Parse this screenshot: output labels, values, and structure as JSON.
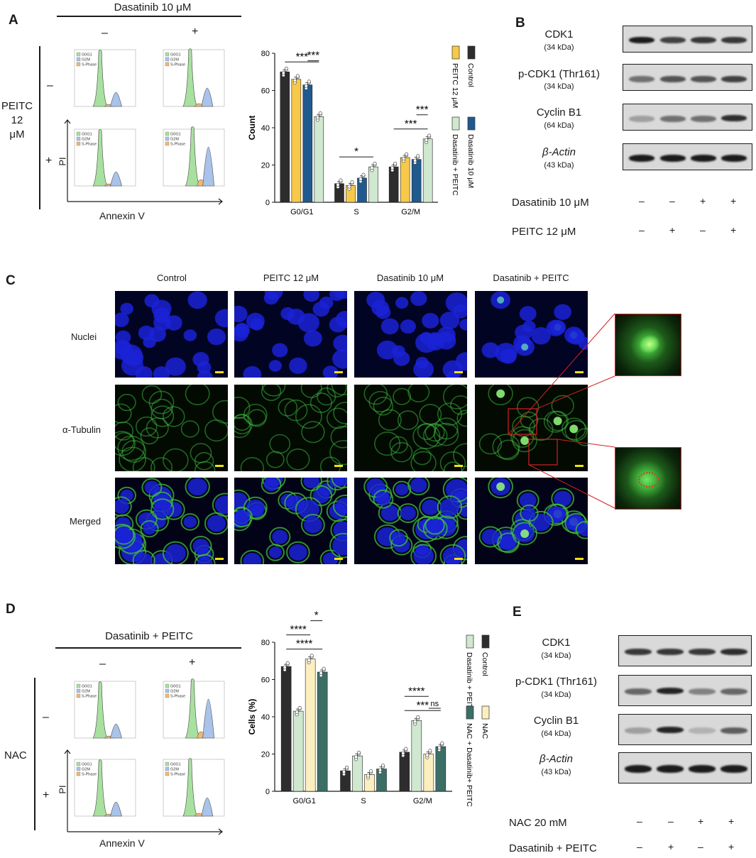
{
  "panels": {
    "A": {
      "label": "A",
      "header_text": "Dasatinib 10 μM",
      "col_minus": "–",
      "col_plus": "+",
      "row_label": "PEITC\n12\nμM",
      "row_label_lines": [
        "PEITC",
        "12",
        "μM"
      ],
      "row_minus": "–",
      "row_plus": "+",
      "y_axis": "PI",
      "x_axis": "Annexin V",
      "hist_legend": [
        "G0G1",
        "G2M",
        "S-Phase"
      ]
    },
    "B": {
      "label": "B",
      "proteins": [
        {
          "name": "CDK1",
          "kda": "(34 kDa)"
        },
        {
          "name": "p-CDK1 (Thr161)",
          "kda": "(34 kDa)"
        },
        {
          "name": "Cyclin B1",
          "kda": "(64 kDa)"
        },
        {
          "name": "β-Actin",
          "kda": "(43 kDa)"
        }
      ],
      "conditions": [
        {
          "label": "Dasatinib 10 μM",
          "signs": [
            "–",
            "–",
            "+",
            "+"
          ]
        },
        {
          "label": "PEITC 12 μM",
          "signs": [
            "–",
            "+",
            "–",
            "+"
          ]
        }
      ]
    },
    "C": {
      "label": "C",
      "columns": [
        "Control",
        "PEITC 12 μM",
        "Dasatinib 10 μM",
        "Dasatinib + PEITC"
      ],
      "rows": [
        "Nuclei",
        "α-Tubulin",
        "Merged"
      ]
    },
    "D": {
      "label": "D",
      "header_text": "Dasatinib + PEITC",
      "col_minus": "–",
      "col_plus": "+",
      "row_label": "NAC",
      "row_minus": "–",
      "row_plus": "+",
      "y_axis": "PI",
      "x_axis": "Annexin V",
      "hist_legend": [
        "G0G1",
        "G2M",
        "S-Phase"
      ]
    },
    "E": {
      "label": "E",
      "proteins": [
        {
          "name": "CDK1",
          "kda": "(34 kDa)"
        },
        {
          "name": "p-CDK1 (Thr161)",
          "kda": "(34 kDa)"
        },
        {
          "name": "Cyclin B1",
          "kda": "(64 kDa)"
        },
        {
          "name": "β-Actin",
          "kda": "(43 kDa)"
        }
      ],
      "conditions": [
        {
          "label": "NAC 20 mM",
          "signs": [
            "–",
            "–",
            "+",
            "+"
          ]
        },
        {
          "label": "Dasatinib + PEITC",
          "signs": [
            "–",
            "+",
            "–",
            "+"
          ]
        }
      ]
    }
  },
  "chart_data": [
    {
      "type": "bar",
      "panel": "A",
      "title": "",
      "xlabel": "",
      "ylabel": "Count",
      "ylim": [
        0,
        80
      ],
      "yticks": [
        0,
        20,
        40,
        60,
        80
      ],
      "categories": [
        "G0/G1",
        "S",
        "G2/M"
      ],
      "series": [
        {
          "name": "Control",
          "color": "#2d2d2d",
          "values": [
            70,
            10,
            19
          ]
        },
        {
          "name": "PEITC 12 μM",
          "color": "#f6c94a",
          "values": [
            66,
            9,
            24
          ]
        },
        {
          "name": "Dasatinib 10 μM",
          "color": "#1f5a8e",
          "values": [
            63,
            13,
            23
          ]
        },
        {
          "name": "Dasatinib + PEITC",
          "color": "#cfe8cf",
          "values": [
            46,
            19,
            34
          ]
        }
      ],
      "significance": [
        {
          "text": "***",
          "category": "G0/G1",
          "from": 0,
          "to": 3
        },
        {
          "text": "***",
          "category": "G0/G1",
          "from": 2,
          "to": 3
        },
        {
          "text": "*",
          "category": "S",
          "from": 0,
          "to": 3
        },
        {
          "text": "***",
          "category": "G2/M",
          "from": 0,
          "to": 3
        },
        {
          "text": "***",
          "category": "G2/M",
          "from": 2,
          "to": 3
        }
      ],
      "legend_position": "right"
    },
    {
      "type": "bar",
      "panel": "D",
      "title": "",
      "xlabel": "",
      "ylabel": "Cells (%)",
      "ylim": [
        0,
        80
      ],
      "yticks": [
        0,
        20,
        40,
        60,
        80
      ],
      "categories": [
        "G0/G1",
        "S",
        "G2/M"
      ],
      "series": [
        {
          "name": "Control",
          "color": "#2d2d2d",
          "values": [
            67,
            11,
            21
          ]
        },
        {
          "name": "Dasatinib + PEITC",
          "color": "#cfe8cf",
          "values": [
            43,
            19,
            38
          ]
        },
        {
          "name": "NAC",
          "color": "#fbefc0",
          "values": [
            71,
            9,
            20
          ]
        },
        {
          "name": "NAC + Dasatinib+ PEITC",
          "color": "#3b6f66",
          "values": [
            64,
            12,
            24
          ]
        }
      ],
      "significance": [
        {
          "text": "****",
          "category": "G0/G1",
          "from": 0,
          "to": 3
        },
        {
          "text": "****",
          "category": "G0/G1",
          "from": 0,
          "to": 2
        },
        {
          "text": "*",
          "category": "G0/G1",
          "from": 2,
          "to": 3
        },
        {
          "text": "***",
          "category": "G2/M",
          "from": 0,
          "to": 3
        },
        {
          "text": "****",
          "category": "G2/M",
          "from": 0,
          "to": 2
        },
        {
          "text": "ns",
          "category": "G2/M",
          "from": 2,
          "to": 3
        }
      ],
      "legend_position": "right"
    }
  ],
  "colors": {
    "nuclei_blue": "#1a22d6",
    "tubulin_green": "#3fbf3f",
    "zoom_box_red": "#d62020",
    "scale_bar_yellow": "#f2e30c",
    "hist_g0g1": "#a8e0a0",
    "hist_g2m": "#a9c3ea",
    "hist_sphase": "#f2b870"
  }
}
